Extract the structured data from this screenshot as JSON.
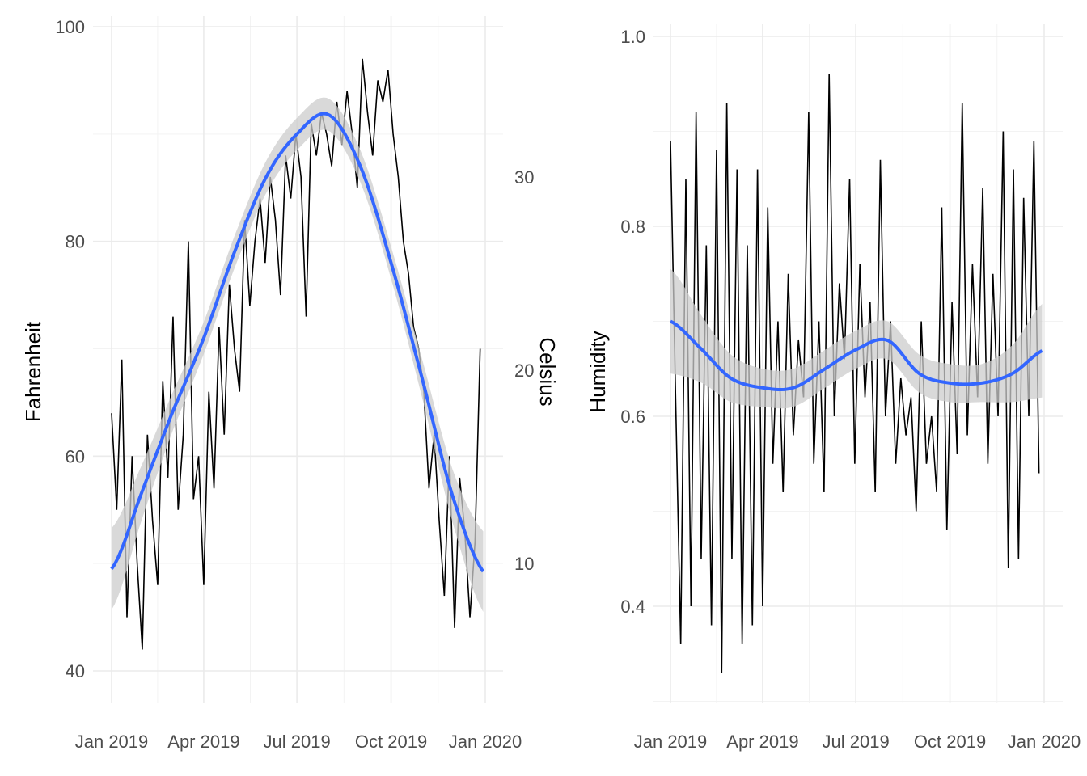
{
  "chart_data": [
    {
      "type": "line",
      "ylabel": "Fahrenheit",
      "secondary_ylabel": "Celsius",
      "x_ticks": [
        "Jan 2019",
        "Apr 2019",
        "Jul 2019",
        "Oct 2019",
        "Jan 2020"
      ],
      "x_tick_days": [
        0,
        90,
        181,
        273,
        365
      ],
      "y_ticks": [
        "40",
        "60",
        "80",
        "100"
      ],
      "y_tick_values": [
        40,
        60,
        80,
        100
      ],
      "secondary_y_ticks": [
        "10",
        "20",
        "30"
      ],
      "secondary_y_tick_values": [
        10,
        20,
        30
      ],
      "ylim": [
        36,
        100
      ],
      "x_step_days": 5,
      "values": [
        64,
        55,
        69,
        45,
        60,
        50,
        42,
        62,
        54,
        48,
        67,
        58,
        73,
        55,
        62,
        80,
        56,
        60,
        48,
        66,
        57,
        72,
        62,
        76,
        70,
        66,
        82,
        74,
        80,
        84,
        78,
        86,
        82,
        75,
        88,
        84,
        90,
        86,
        73,
        91,
        88,
        92,
        90,
        87,
        93,
        89,
        94,
        90,
        85,
        97,
        92,
        88,
        95,
        93,
        96,
        90,
        86,
        80,
        77,
        72,
        70,
        66,
        57,
        62,
        54,
        47,
        60,
        44,
        58,
        53,
        45,
        52,
        70
      ],
      "smooth": {
        "x_days": [
          0,
          31,
          59,
          90,
          120,
          151,
          181,
          212,
          243,
          273,
          304,
          334,
          365
        ],
        "values": [
          49.5,
          57,
          64,
          71,
          79,
          86,
          90,
          91.8,
          87,
          78,
          67,
          56,
          49
        ],
        "ci_halfwidth": [
          3.8,
          2.5,
          1.8,
          1.5,
          1.5,
          1.5,
          1.5,
          1.5,
          1.5,
          1.5,
          1.8,
          2.5,
          3.8
        ]
      },
      "colors": {
        "line": "#000000",
        "smooth": "#3366ff",
        "band": "#cccccc"
      }
    },
    {
      "type": "line",
      "ylabel": "Humidity",
      "x_ticks": [
        "Jan 2019",
        "Apr 2019",
        "Jul 2019",
        "Oct 2019",
        "Jan 2020"
      ],
      "x_tick_days": [
        0,
        90,
        181,
        273,
        365
      ],
      "y_ticks": [
        "0.4",
        "0.6",
        "0.8",
        "1.0"
      ],
      "y_tick_values": [
        0.4,
        0.6,
        0.8,
        1.0
      ],
      "ylim": [
        0.3,
        1.0
      ],
      "x_step_days": 5,
      "values": [
        0.89,
        0.62,
        0.36,
        0.85,
        0.4,
        0.92,
        0.45,
        0.78,
        0.38,
        0.88,
        0.33,
        0.93,
        0.45,
        0.86,
        0.36,
        0.78,
        0.38,
        0.86,
        0.4,
        0.82,
        0.55,
        0.7,
        0.52,
        0.75,
        0.58,
        0.68,
        0.62,
        0.92,
        0.55,
        0.7,
        0.52,
        0.96,
        0.6,
        0.74,
        0.66,
        0.85,
        0.55,
        0.76,
        0.62,
        0.72,
        0.52,
        0.87,
        0.6,
        0.7,
        0.55,
        0.64,
        0.58,
        0.62,
        0.5,
        0.7,
        0.55,
        0.6,
        0.52,
        0.82,
        0.48,
        0.72,
        0.56,
        0.93,
        0.58,
        0.76,
        0.62,
        0.84,
        0.55,
        0.75,
        0.6,
        0.9,
        0.44,
        0.86,
        0.45,
        0.83,
        0.6,
        0.89,
        0.54
      ],
      "smooth": {
        "x_days": [
          0,
          31,
          59,
          90,
          120,
          151,
          181,
          212,
          243,
          273,
          304,
          334,
          365
        ],
        "values": [
          0.7,
          0.67,
          0.64,
          0.63,
          0.63,
          0.65,
          0.67,
          0.68,
          0.645,
          0.635,
          0.635,
          0.645,
          0.67
        ],
        "ci_halfwidth": [
          0.055,
          0.035,
          0.025,
          0.02,
          0.02,
          0.02,
          0.02,
          0.02,
          0.02,
          0.02,
          0.02,
          0.03,
          0.05
        ]
      },
      "colors": {
        "line": "#000000",
        "smooth": "#3366ff",
        "band": "#cccccc"
      }
    }
  ]
}
